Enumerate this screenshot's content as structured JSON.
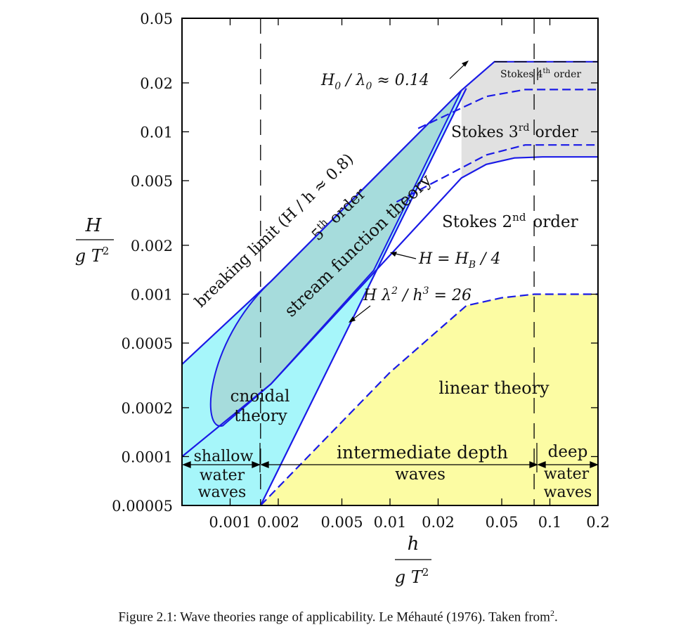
{
  "chart_data": {
    "type": "area",
    "title": "",
    "xlabel": {
      "num": "h",
      "den": "g T",
      "den_exp": "2"
    },
    "ylabel": {
      "num": "H",
      "den": "g T",
      "den_exp": "2"
    },
    "xscale": "log",
    "yscale": "log",
    "xlim": [
      0.0005,
      0.2
    ],
    "ylim": [
      5e-05,
      0.05
    ],
    "xticks": [
      {
        "v": 0.001,
        "label": "0.001"
      },
      {
        "v": 0.002,
        "label": "0.002"
      },
      {
        "v": 0.005,
        "label": "0.005"
      },
      {
        "v": 0.01,
        "label": "0.01"
      },
      {
        "v": 0.02,
        "label": "0.02"
      },
      {
        "v": 0.05,
        "label": "0.05"
      },
      {
        "v": 0.1,
        "label": "0.1"
      },
      {
        "v": 0.2,
        "label": "0.2"
      }
    ],
    "yticks": [
      {
        "v": 5e-05,
        "label": "0.00005"
      },
      {
        "v": 0.0001,
        "label": "0.0001"
      },
      {
        "v": 0.0002,
        "label": "0.0002"
      },
      {
        "v": 0.0005,
        "label": "0.0005"
      },
      {
        "v": 0.001,
        "label": "0.001"
      },
      {
        "v": 0.002,
        "label": "0.002"
      },
      {
        "v": 0.005,
        "label": "0.005"
      },
      {
        "v": 0.01,
        "label": "0.01"
      },
      {
        "v": 0.02,
        "label": "0.02"
      },
      {
        "v": 0.05,
        "label": "0.05"
      }
    ],
    "grid": false,
    "vlines": [
      {
        "x": 0.00155,
        "style": "dashed"
      },
      {
        "x": 0.0797,
        "style": "dashed"
      }
    ],
    "breaking_limit_line": {
      "label": "breaking limit (H / h ≈ 0.8)",
      "x": [
        0.0005,
        0.0018,
        0.028
      ],
      "y": [
        0.00037,
        0.0012,
        0.018
      ]
    },
    "hb4_line": {
      "label": "H = H_B / 4",
      "x": [
        0.0005,
        0.0018,
        0.028,
        0.04,
        0.06,
        0.09,
        0.2
      ],
      "y": [
        0.0001,
        0.00028,
        0.0052,
        0.0063,
        0.0069,
        0.007,
        0.007
      ]
    },
    "ursell_line": {
      "label": "H λ^2 / h^3 = 26",
      "x": [
        0.00155,
        0.03
      ],
      "y": [
        5e-05,
        0.0185
      ]
    },
    "steepness_limit": {
      "label": "H_0 / λ_0 ≈ 0.14",
      "x": [
        0.045,
        0.2
      ],
      "y": [
        0.027,
        0.027
      ]
    },
    "stokes4_boundary": {
      "x": [
        0.015,
        0.04,
        0.07,
        0.2
      ],
      "y": [
        0.0105,
        0.0165,
        0.0182,
        0.0182
      ]
    },
    "stokes3_boundary": {
      "x": [
        0.011,
        0.04,
        0.07,
        0.2
      ],
      "y": [
        0.0037,
        0.0072,
        0.0083,
        0.0083
      ]
    },
    "linear_boundary": {
      "x": [
        0.00155,
        0.01,
        0.03,
        0.05,
        0.08,
        0.2
      ],
      "y": [
        5e-05,
        0.00033,
        0.00085,
        0.00095,
        0.001,
        0.001
      ]
    },
    "regions": [
      {
        "name": "stream function theory",
        "color": "#a6dcdc"
      },
      {
        "name": "cnoidal theory",
        "color": "#a6f6fa"
      },
      {
        "name": "stokes",
        "color": "#e1e1e1"
      },
      {
        "name": "linear theory",
        "color": "#fcfca3"
      }
    ],
    "region_labels": {
      "sft_order": "5",
      "sft_order_sup": "th",
      "sft_order_word": "order",
      "sft_name": "stream function theory",
      "cnoidal_1": "cnoidal",
      "cnoidal_2": "theory",
      "stokes4_pre": "Stokes",
      "stokes4_num": "4",
      "stokes4_sup": "th",
      "stokes4_post": "order",
      "stokes3_pre": "Stokes 3",
      "stokes3_sup": "rd",
      "stokes3_post": "order",
      "stokes2_pre": "Stokes 2",
      "stokes2_sup": "nd",
      "stokes2_post": "order",
      "linear": "linear theory",
      "shallow_1": "shallow",
      "shallow_2": "water",
      "shallow_3": "waves",
      "intermediate_1": "intermediate depth",
      "intermediate_2": "waves",
      "deep_1": "deep",
      "deep_2": "water",
      "deep_3": "waves",
      "hb4_pre": "H = H",
      "hb4_sub": "B",
      "hb4_post": " / 4",
      "ursell_a": "H λ",
      "ursell_b": "2",
      "ursell_c": " / h",
      "ursell_d": "3",
      "ursell_e": " = 26",
      "steep_a": "H",
      "steep_b": "0",
      "steep_c": " / λ",
      "steep_d": "0",
      "steep_e": " ≈ 0.14",
      "breaking": "breaking limit (H / h ≈ 0.8)"
    }
  },
  "caption": {
    "text": "Figure 2.1: Wave theories range of applicability. Le Méhauté (1976). Taken from",
    "sup": "2",
    "end": "."
  }
}
